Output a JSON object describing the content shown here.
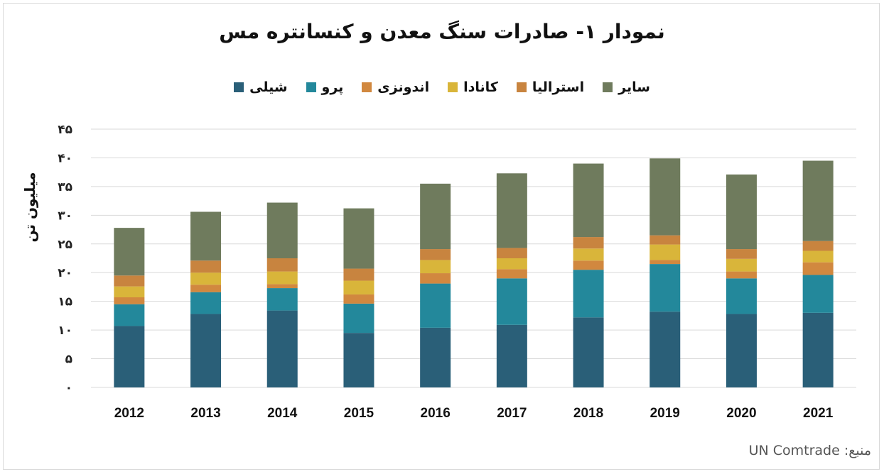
{
  "source_text": "منبع: UN Comtrade",
  "chart_data": {
    "type": "bar",
    "stacked": true,
    "title": "نمودار ۱- صادرات سنگ معدن و کنسانتره مس",
    "ylabel": "میلیون تن",
    "ylim": [
      0,
      45
    ],
    "yticks": [
      "۰",
      "۵",
      "۱۰",
      "۱۵",
      "۲۰",
      "۲۵",
      "۳۰",
      "۳۵",
      "۴۰",
      "۴۵"
    ],
    "grid": true,
    "legend_position": "top",
    "categories": [
      "2012",
      "2013",
      "2014",
      "2015",
      "2016",
      "2017",
      "2018",
      "2019",
      "2020",
      "2021"
    ],
    "series": [
      {
        "name": "شیلی",
        "color": "#2a5f78",
        "values": [
          10.7,
          12.8,
          13.4,
          9.5,
          10.4,
          10.9,
          12.2,
          13.2,
          12.8,
          13.0
        ]
      },
      {
        "name": "پرو",
        "color": "#23889b",
        "values": [
          3.8,
          3.8,
          3.9,
          5.1,
          7.7,
          8.1,
          8.3,
          8.3,
          6.2,
          6.6
        ]
      },
      {
        "name": "اندونزی",
        "color": "#d1883f",
        "values": [
          1.2,
          1.3,
          0.7,
          1.6,
          1.8,
          1.6,
          1.6,
          0.7,
          1.2,
          2.2
        ]
      },
      {
        "name": "کانادا",
        "color": "#d9b53a",
        "values": [
          1.9,
          2.1,
          2.2,
          2.4,
          2.3,
          1.9,
          2.1,
          2.7,
          2.2,
          2.0
        ]
      },
      {
        "name": "استرالیا",
        "color": "#c8843f",
        "values": [
          1.9,
          2.1,
          2.3,
          2.1,
          1.9,
          1.8,
          2.0,
          1.6,
          1.7,
          1.7
        ]
      },
      {
        "name": "سایر",
        "color": "#6f7b5d",
        "values": [
          8.3,
          8.5,
          9.7,
          10.5,
          11.4,
          13.0,
          12.8,
          13.4,
          13.0,
          14.0
        ]
      }
    ]
  }
}
